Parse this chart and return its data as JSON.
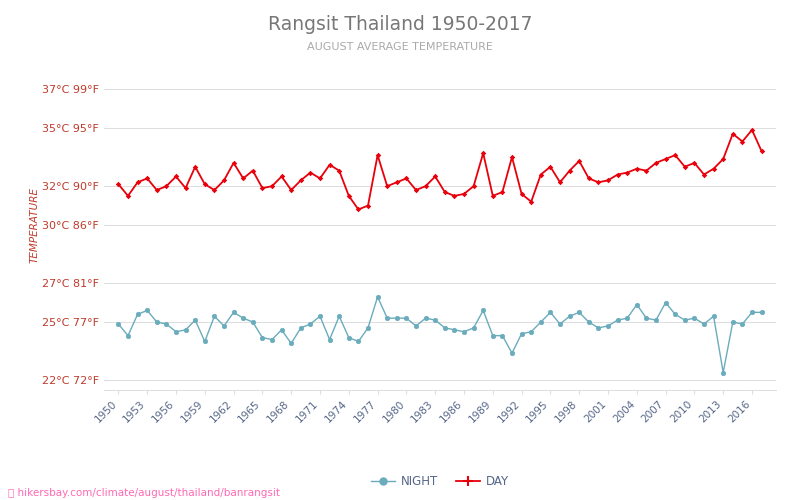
{
  "title": "Rangsit Thailand 1950-2017",
  "subtitle": "AUGUST AVERAGE TEMPERATURE",
  "ylabel": "TEMPERATURE",
  "footer": "hikersbay.com/climate/august/thailand/banrangsit",
  "years": [
    1950,
    1951,
    1952,
    1953,
    1954,
    1955,
    1956,
    1957,
    1958,
    1959,
    1960,
    1961,
    1962,
    1963,
    1964,
    1965,
    1966,
    1967,
    1968,
    1969,
    1970,
    1971,
    1972,
    1973,
    1974,
    1975,
    1976,
    1977,
    1978,
    1979,
    1980,
    1981,
    1982,
    1983,
    1984,
    1985,
    1986,
    1987,
    1988,
    1989,
    1990,
    1991,
    1992,
    1993,
    1994,
    1995,
    1996,
    1997,
    1998,
    1999,
    2000,
    2001,
    2002,
    2003,
    2004,
    2005,
    2006,
    2007,
    2008,
    2009,
    2010,
    2011,
    2012,
    2013,
    2014,
    2015,
    2016,
    2017
  ],
  "day_temps": [
    32.1,
    31.5,
    32.2,
    32.4,
    31.8,
    32.0,
    32.5,
    31.9,
    33.0,
    32.1,
    31.8,
    32.3,
    33.2,
    32.4,
    32.8,
    31.9,
    32.0,
    32.5,
    31.8,
    32.3,
    32.7,
    32.4,
    33.1,
    32.8,
    31.5,
    30.8,
    31.0,
    33.6,
    32.0,
    32.2,
    32.4,
    31.8,
    32.0,
    32.5,
    31.7,
    31.5,
    31.6,
    32.0,
    33.7,
    31.5,
    31.7,
    33.5,
    31.6,
    31.2,
    32.6,
    33.0,
    32.2,
    32.8,
    33.3,
    32.4,
    32.2,
    32.3,
    32.6,
    32.7,
    32.9,
    32.8,
    33.2,
    33.4,
    33.6,
    33.0,
    33.2,
    32.6,
    32.9,
    33.4,
    34.7,
    34.3,
    34.9,
    33.8
  ],
  "night_temps": [
    24.9,
    24.3,
    25.4,
    25.6,
    25.0,
    24.9,
    24.5,
    24.6,
    25.1,
    24.0,
    25.3,
    24.8,
    25.5,
    25.2,
    25.0,
    24.2,
    24.1,
    24.6,
    23.9,
    24.7,
    24.9,
    25.3,
    24.1,
    25.3,
    24.2,
    24.0,
    24.7,
    26.3,
    25.2,
    25.2,
    25.2,
    24.8,
    25.2,
    25.1,
    24.7,
    24.6,
    24.5,
    24.7,
    25.6,
    24.3,
    24.3,
    23.4,
    24.4,
    24.5,
    25.0,
    25.5,
    24.9,
    25.3,
    25.5,
    25.0,
    24.7,
    24.8,
    25.1,
    25.2,
    25.9,
    25.2,
    25.1,
    26.0,
    25.4,
    25.1,
    25.2,
    24.9,
    25.3,
    22.4,
    25.0,
    24.9,
    25.5,
    25.5
  ],
  "yticks_c": [
    22,
    25,
    27,
    30,
    32,
    35,
    37
  ],
  "yticks_f": [
    72,
    77,
    81,
    86,
    90,
    95,
    99
  ],
  "ylim_c": [
    21.5,
    38.5
  ],
  "xlim": [
    1948.5,
    2018.5
  ],
  "day_color": "#e8000b",
  "night_color": "#6aacbc",
  "title_color": "#777777",
  "subtitle_color": "#aaaaaa",
  "grid_color": "#dddddd",
  "ytick_color": "#c0392b",
  "xtick_color": "#556688",
  "footer_color": "#ff69b4",
  "bg_color": "#ffffff",
  "x_ticks": [
    1950,
    1953,
    1956,
    1959,
    1962,
    1965,
    1968,
    1971,
    1974,
    1977,
    1980,
    1983,
    1986,
    1989,
    1992,
    1995,
    1998,
    2001,
    2004,
    2007,
    2010,
    2013,
    2016
  ]
}
